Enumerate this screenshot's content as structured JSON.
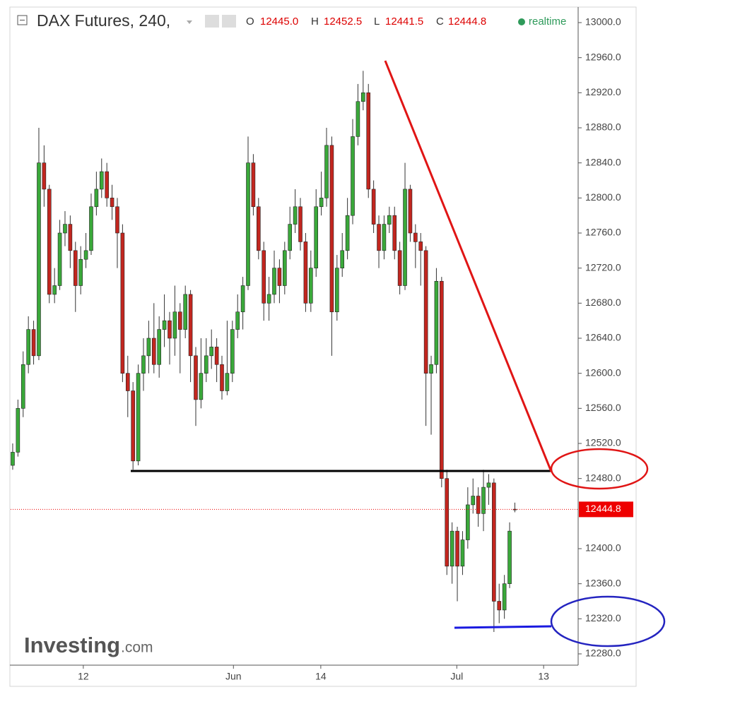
{
  "header": {
    "symbol": "DAX Futures, 240,",
    "o_key": "O",
    "o": "12445.0",
    "h_key": "H",
    "h": "12452.5",
    "l_key": "L",
    "l": "12441.5",
    "c_key": "C",
    "c": "12444.8",
    "status": "realtime"
  },
  "watermark": {
    "brand": "Investing",
    "suffix": ".com"
  },
  "chart_data": {
    "type": "candlestick",
    "up_color": "#3aa83a",
    "down_color": "#c2261f",
    "xlim": [
      -0.4,
      108.1
    ],
    "xticks": [
      {
        "value": 13.5,
        "label": "12"
      },
      {
        "value": 42.2,
        "label": "Jun"
      },
      {
        "value": 58.9,
        "label": "14"
      },
      {
        "value": 84.9,
        "label": "Jul"
      },
      {
        "value": 101.5,
        "label": "13"
      }
    ],
    "ylim": [
      12280,
      13000
    ],
    "yticks": [
      {
        "value": 12280,
        "label": "12280.0"
      },
      {
        "value": 12320,
        "label": "12320.0"
      },
      {
        "value": 12360,
        "label": "12360.0"
      },
      {
        "value": 12400,
        "label": "12400.0"
      },
      {
        "value": 12480,
        "label": "12480.0"
      },
      {
        "value": 12520,
        "label": "12520.0"
      },
      {
        "value": 12560,
        "label": "12560.0"
      },
      {
        "value": 12600,
        "label": "12600.0"
      },
      {
        "value": 12640,
        "label": "12640.0"
      },
      {
        "value": 12680,
        "label": "12680.0"
      },
      {
        "value": 12720,
        "label": "12720.0"
      },
      {
        "value": 12760,
        "label": "12760.0"
      },
      {
        "value": 12800,
        "label": "12800.0"
      },
      {
        "value": 12840,
        "label": "12840.0"
      },
      {
        "value": 12880,
        "label": "12880.0"
      },
      {
        "value": 12920,
        "label": "12920.0"
      },
      {
        "value": 12960,
        "label": "12960.0"
      },
      {
        "value": 13000,
        "label": "13000.0"
      }
    ],
    "last_price": 12444.8,
    "open": [
      12495,
      12510,
      12560,
      12610,
      12650,
      12620,
      12840,
      12810,
      12690,
      12700,
      12760,
      12770,
      12740,
      12700,
      12730,
      12740,
      12790,
      12810,
      12830,
      12800,
      12790,
      12760,
      12600,
      12580,
      12500,
      12600,
      12620,
      12640,
      12610,
      12650,
      12660,
      12640,
      12670,
      12650,
      12690,
      12620,
      12570,
      12600,
      12620,
      12630,
      12610,
      12580,
      12600,
      12650,
      12670,
      12700,
      12840,
      12790,
      12740,
      12680,
      12690,
      12720,
      12700,
      12740,
      12770,
      12790,
      12750,
      12680,
      12720,
      12790,
      12800,
      12860,
      12670,
      12720,
      12740,
      12780,
      12870,
      12910,
      12920,
      12810,
      12770,
      12740,
      12770,
      12780,
      12740,
      12700,
      12810,
      12760,
      12750,
      12740,
      12600,
      12610,
      12705,
      12480,
      12380,
      12420,
      12380,
      12410,
      12450,
      12460,
      12440,
      12470,
      12475,
      12340,
      12330,
      12360,
      12445
    ],
    "high": [
      12520,
      12570,
      12625,
      12665,
      12660,
      12880,
      12860,
      12815,
      12720,
      12775,
      12785,
      12780,
      12750,
      12745,
      12760,
      12805,
      12830,
      12845,
      12840,
      12815,
      12800,
      12770,
      12620,
      12590,
      12610,
      12640,
      12660,
      12680,
      12665,
      12690,
      12670,
      12700,
      12680,
      12700,
      12695,
      12630,
      12640,
      12640,
      12650,
      12640,
      12620,
      12660,
      12660,
      12690,
      12710,
      12870,
      12850,
      12800,
      12750,
      12710,
      12740,
      12730,
      12750,
      12790,
      12810,
      12800,
      12760,
      12740,
      12810,
      12830,
      12880,
      12870,
      12735,
      12760,
      12800,
      12890,
      12930,
      12945,
      12930,
      12820,
      12780,
      12780,
      12790,
      12790,
      12750,
      12840,
      12815,
      12770,
      12760,
      12745,
      12620,
      12720,
      12710,
      12490,
      12430,
      12425,
      12420,
      12470,
      12480,
      12470,
      12490,
      12485,
      12480,
      12360,
      12370,
      12430,
      12452.5
    ],
    "low": [
      12490,
      12505,
      12550,
      12600,
      12610,
      12615,
      12790,
      12680,
      12680,
      12695,
      12745,
      12720,
      12670,
      12690,
      12720,
      12735,
      12780,
      12800,
      12790,
      12775,
      12720,
      12590,
      12550,
      12490,
      12495,
      12580,
      12600,
      12600,
      12595,
      12630,
      12610,
      12620,
      12600,
      12640,
      12590,
      12540,
      12560,
      12590,
      12605,
      12590,
      12570,
      12575,
      12590,
      12640,
      12650,
      12695,
      12780,
      12730,
      12660,
      12660,
      12680,
      12680,
      12690,
      12730,
      12760,
      12740,
      12670,
      12670,
      12710,
      12780,
      12790,
      12620,
      12660,
      12710,
      12730,
      12770,
      12860,
      12900,
      12800,
      12760,
      12720,
      12730,
      12760,
      12730,
      12690,
      12695,
      12750,
      12720,
      12700,
      12540,
      12530,
      12600,
      12470,
      12370,
      12360,
      12340,
      12370,
      12400,
      12440,
      12425,
      12420,
      12450,
      12305,
      12315,
      12320,
      12355,
      12441.5
    ],
    "close": [
      12510,
      12560,
      12610,
      12650,
      12620,
      12840,
      12810,
      12690,
      12700,
      12760,
      12770,
      12740,
      12700,
      12730,
      12740,
      12790,
      12810,
      12830,
      12800,
      12790,
      12760,
      12600,
      12580,
      12500,
      12600,
      12620,
      12640,
      12610,
      12650,
      12660,
      12640,
      12670,
      12650,
      12690,
      12620,
      12570,
      12600,
      12620,
      12630,
      12610,
      12580,
      12600,
      12650,
      12670,
      12700,
      12840,
      12790,
      12740,
      12680,
      12690,
      12720,
      12700,
      12740,
      12770,
      12790,
      12750,
      12680,
      12720,
      12790,
      12800,
      12860,
      12670,
      12720,
      12740,
      12780,
      12870,
      12910,
      12920,
      12810,
      12770,
      12740,
      12770,
      12780,
      12740,
      12700,
      12810,
      12760,
      12750,
      12740,
      12600,
      12610,
      12705,
      12480,
      12380,
      12420,
      12380,
      12410,
      12450,
      12460,
      12440,
      12470,
      12475,
      12340,
      12330,
      12360,
      12420,
      12444.8
    ]
  }
}
